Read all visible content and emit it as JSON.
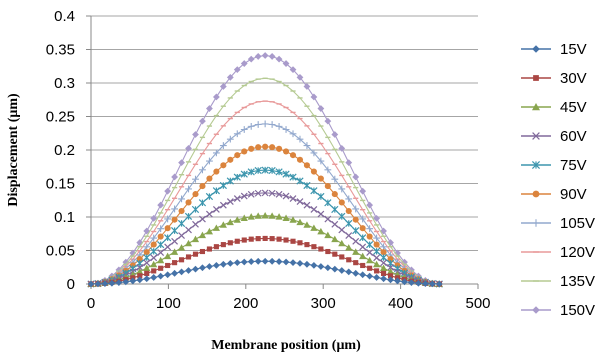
{
  "chart_data": {
    "type": "scatter",
    "xlabel": "Membrane position (μm)",
    "ylabel": "Displacement (μm)",
    "xlim": [
      0,
      500
    ],
    "ylim": [
      0,
      0.4
    ],
    "x_ticks": [
      0,
      100,
      200,
      300,
      400,
      500
    ],
    "y_ticks": [
      0,
      0.05,
      0.1,
      0.15,
      0.2,
      0.25,
      0.3,
      0.35,
      0.4
    ],
    "y_tick_labels": [
      "0",
      "0.05",
      "0.1",
      "0.15",
      "0.2",
      "0.25",
      "0.3",
      "0.35",
      "0.4"
    ],
    "grid": "horizontal",
    "legend": "right",
    "profile": {
      "x_start": 0,
      "x_end": 450,
      "points": 51,
      "shape": "sin-squared, peak at 225"
    },
    "series": [
      {
        "name": "15V",
        "peak": 0.034,
        "color": "#4572A7",
        "marker": "diamond"
      },
      {
        "name": "30V",
        "peak": 0.068,
        "color": "#AA4643",
        "marker": "square"
      },
      {
        "name": "45V",
        "peak": 0.102,
        "color": "#89A54E",
        "marker": "triangle"
      },
      {
        "name": "60V",
        "peak": 0.136,
        "color": "#80699B",
        "marker": "x"
      },
      {
        "name": "75V",
        "peak": 0.17,
        "color": "#3D96AE",
        "marker": "star"
      },
      {
        "name": "90V",
        "peak": 0.205,
        "color": "#DB843D",
        "marker": "circle"
      },
      {
        "name": "105V",
        "peak": 0.239,
        "color": "#92A8CD",
        "marker": "plus"
      },
      {
        "name": "120V",
        "peak": 0.273,
        "color": "#E89A9A",
        "marker": "dash"
      },
      {
        "name": "135V",
        "peak": 0.307,
        "color": "#B5CA92",
        "marker": "dash"
      },
      {
        "name": "150V",
        "peak": 0.341,
        "color": "#A99BCB",
        "marker": "diamond"
      }
    ]
  }
}
